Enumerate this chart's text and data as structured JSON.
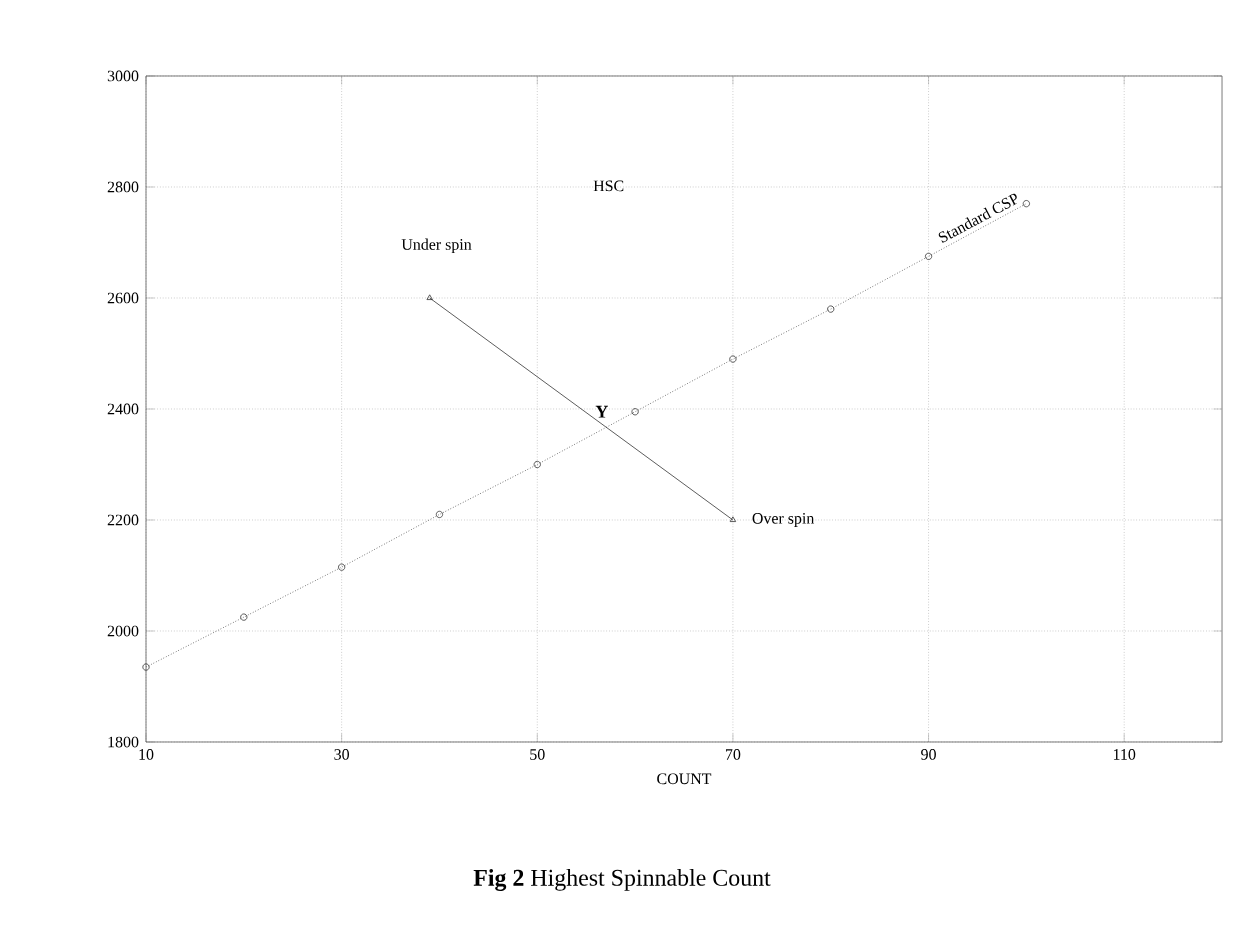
{
  "chart_data": {
    "type": "line",
    "title": "**Fig 2** Highest Spinnable Count",
    "xlabel": "COUNT",
    "xlim": [
      10,
      120
    ],
    "xticks": [
      10,
      30,
      50,
      70,
      90,
      110
    ],
    "ylim": [
      1800,
      3000
    ],
    "yticks": [
      1800,
      2000,
      2200,
      2400,
      2600,
      2800,
      3000
    ],
    "grid": true,
    "series": [
      {
        "name": "Standard CSP",
        "color": "#333333",
        "x": [
          10,
          20,
          30,
          40,
          50,
          60,
          70,
          80,
          90,
          100
        ],
        "values": [
          1935,
          2025,
          2115,
          2210,
          2300,
          2395,
          2490,
          2580,
          2675,
          2770
        ],
        "marker": "circle",
        "line_style": "dotted"
      },
      {
        "color": "#333333",
        "x": [
          39,
          70
        ],
        "values": [
          2600,
          2200
        ],
        "marker": "triangle",
        "line_style": "solid"
      }
    ],
    "annotations": [
      "HSC",
      "Under spin",
      {
        "text": "Over spin",
        "x": 70,
        "y": 2200
      },
      {
        "text": "Y",
        "x": 56.6,
        "y": 2373
      }
    ]
  }
}
